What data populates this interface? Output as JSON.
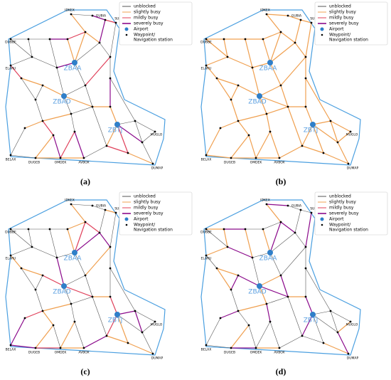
{
  "panels": [
    {
      "caption": "(a)"
    },
    {
      "caption": "(b)"
    },
    {
      "caption": "(c)"
    },
    {
      "caption": "(d)"
    }
  ],
  "legend": {
    "items": [
      {
        "label": "unblocked"
      },
      {
        "label": "slightly busy"
      },
      {
        "label": "mildly busy"
      },
      {
        "label": "severely busy"
      },
      {
        "label": "Airport"
      },
      {
        "lines": [
          "Waypoint/",
          "Navigation station"
        ]
      }
    ]
  },
  "nodes": {
    "airports": [
      "ZBAA",
      "ZBAD",
      "ZBTJ"
    ],
    "waypoints": [
      "IDKEX",
      "GUBIA",
      "SUBUB",
      "DUBBE",
      "ELARU",
      "MUGLO",
      "BELAX",
      "DUGEB",
      "OMDEK",
      "AVBOX",
      "DUMAP"
    ]
  }
}
